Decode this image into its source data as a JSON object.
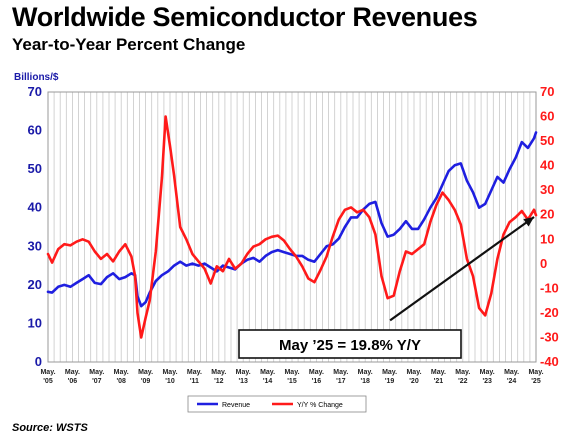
{
  "header": {
    "title": "Worldwide Semiconductor Revenues",
    "subtitle": "Year-to-Year Percent Change"
  },
  "footer": {
    "source": "Source: WSTS"
  },
  "colors": {
    "revenue": "#1f1fe0",
    "yoy": "#ff1a1a",
    "grid": "#c8c8c8",
    "text": "#1a1aa8"
  },
  "chart_data": {
    "type": "line",
    "left_axis_label": "Billions/$",
    "left_axis": {
      "ylim": [
        0,
        70
      ],
      "ticks": [
        0,
        10,
        20,
        30,
        40,
        50,
        60,
        70
      ]
    },
    "right_axis": {
      "ylim": [
        -40,
        70
      ],
      "ticks": [
        -40,
        -30,
        -20,
        -10,
        0,
        10,
        20,
        30,
        40,
        50,
        60,
        70
      ]
    },
    "x_ticks": [
      {
        "top": "May.",
        "bottom": "'05",
        "x": 2005.33
      },
      {
        "top": "May.",
        "bottom": "'06",
        "x": 2006.33
      },
      {
        "top": "May.",
        "bottom": "'07",
        "x": 2007.33
      },
      {
        "top": "May.",
        "bottom": "'08",
        "x": 2008.33
      },
      {
        "top": "May.",
        "bottom": "'09",
        "x": 2009.33
      },
      {
        "top": "May.",
        "bottom": "'10",
        "x": 2010.33
      },
      {
        "top": "May.",
        "bottom": "'11",
        "x": 2011.33
      },
      {
        "top": "May.",
        "bottom": "'12",
        "x": 2012.33
      },
      {
        "top": "May.",
        "bottom": "'13",
        "x": 2013.33
      },
      {
        "top": "May.",
        "bottom": "'14",
        "x": 2014.33
      },
      {
        "top": "May.",
        "bottom": "'15",
        "x": 2015.33
      },
      {
        "top": "May.",
        "bottom": "'16",
        "x": 2016.33
      },
      {
        "top": "May.",
        "bottom": "'17",
        "x": 2017.33
      },
      {
        "top": "May.",
        "bottom": "'18",
        "x": 2018.33
      },
      {
        "top": "May.",
        "bottom": "'19",
        "x": 2019.33
      },
      {
        "top": "May.",
        "bottom": "'20",
        "x": 2020.33
      },
      {
        "top": "May.",
        "bottom": "'21",
        "x": 2021.33
      },
      {
        "top": "May.",
        "bottom": "'22",
        "x": 2022.33
      },
      {
        "top": "May.",
        "bottom": "'23",
        "x": 2023.33
      },
      {
        "top": "May.",
        "bottom": "'24",
        "x": 2024.33
      },
      {
        "top": "May.",
        "bottom": "'25",
        "x": 2025.33
      }
    ],
    "x_range": [
      2005.33,
      2025.33
    ],
    "grid": true,
    "legend": {
      "placement": "bottom-center"
    },
    "annotation": {
      "text": "May ’25 = 19.8% Y/Y",
      "arrow_from": [
        2019.35,
        10.8
      ],
      "arrow_to": [
        2025.25,
        37.6
      ]
    },
    "series": [
      {
        "name": "Revenue",
        "axis": "left",
        "points": [
          [
            2005.33,
            18.2
          ],
          [
            2005.5,
            18.0
          ],
          [
            2005.75,
            19.5
          ],
          [
            2006.0,
            20.0
          ],
          [
            2006.25,
            19.5
          ],
          [
            2006.5,
            20.5
          ],
          [
            2006.75,
            21.5
          ],
          [
            2007.0,
            22.5
          ],
          [
            2007.25,
            20.5
          ],
          [
            2007.5,
            20.2
          ],
          [
            2007.75,
            22.0
          ],
          [
            2008.0,
            23.0
          ],
          [
            2008.25,
            21.5
          ],
          [
            2008.5,
            22.0
          ],
          [
            2008.75,
            23.0
          ],
          [
            2008.9,
            22.5
          ],
          [
            2009.0,
            17.0
          ],
          [
            2009.15,
            14.5
          ],
          [
            2009.33,
            15.5
          ],
          [
            2009.5,
            18.0
          ],
          [
            2009.75,
            21.0
          ],
          [
            2010.0,
            22.5
          ],
          [
            2010.25,
            23.5
          ],
          [
            2010.5,
            25.0
          ],
          [
            2010.75,
            26.0
          ],
          [
            2011.0,
            25.0
          ],
          [
            2011.25,
            25.5
          ],
          [
            2011.5,
            25.0
          ],
          [
            2011.75,
            25.5
          ],
          [
            2012.0,
            24.5
          ],
          [
            2012.25,
            23.5
          ],
          [
            2012.5,
            25.0
          ],
          [
            2012.75,
            24.5
          ],
          [
            2013.0,
            24.0
          ],
          [
            2013.25,
            25.5
          ],
          [
            2013.5,
            26.5
          ],
          [
            2013.75,
            27.0
          ],
          [
            2014.0,
            26.0
          ],
          [
            2014.25,
            27.5
          ],
          [
            2014.5,
            28.5
          ],
          [
            2014.75,
            29.0
          ],
          [
            2015.0,
            28.5
          ],
          [
            2015.25,
            28.0
          ],
          [
            2015.5,
            27.5
          ],
          [
            2015.75,
            27.5
          ],
          [
            2016.0,
            26.5
          ],
          [
            2016.25,
            26.0
          ],
          [
            2016.5,
            28.0
          ],
          [
            2016.75,
            30.0
          ],
          [
            2017.0,
            30.5
          ],
          [
            2017.25,
            32.0
          ],
          [
            2017.5,
            35.0
          ],
          [
            2017.75,
            37.5
          ],
          [
            2018.0,
            37.5
          ],
          [
            2018.25,
            39.5
          ],
          [
            2018.5,
            41.0
          ],
          [
            2018.75,
            41.5
          ],
          [
            2019.0,
            36.0
          ],
          [
            2019.25,
            32.5
          ],
          [
            2019.5,
            33.0
          ],
          [
            2019.75,
            34.5
          ],
          [
            2020.0,
            36.5
          ],
          [
            2020.25,
            34.5
          ],
          [
            2020.5,
            34.5
          ],
          [
            2020.75,
            37.0
          ],
          [
            2021.0,
            40.0
          ],
          [
            2021.25,
            42.5
          ],
          [
            2021.5,
            46.0
          ],
          [
            2021.75,
            49.5
          ],
          [
            2022.0,
            51.0
          ],
          [
            2022.25,
            51.5
          ],
          [
            2022.5,
            47.0
          ],
          [
            2022.75,
            44.0
          ],
          [
            2023.0,
            40.0
          ],
          [
            2023.25,
            41.0
          ],
          [
            2023.5,
            44.5
          ],
          [
            2023.75,
            48.0
          ],
          [
            2024.0,
            46.5
          ],
          [
            2024.25,
            50.0
          ],
          [
            2024.5,
            53.0
          ],
          [
            2024.75,
            57.0
          ],
          [
            2025.0,
            55.5
          ],
          [
            2025.25,
            58.0
          ],
          [
            2025.33,
            59.5
          ]
        ]
      },
      {
        "name": "Y/Y % Change",
        "axis": "right",
        "points": [
          [
            2005.33,
            4.0
          ],
          [
            2005.5,
            0.5
          ],
          [
            2005.75,
            6.0
          ],
          [
            2006.0,
            8.0
          ],
          [
            2006.25,
            7.5
          ],
          [
            2006.5,
            9.0
          ],
          [
            2006.75,
            10.0
          ],
          [
            2007.0,
            9.0
          ],
          [
            2007.25,
            5.0
          ],
          [
            2007.5,
            2.0
          ],
          [
            2007.75,
            4.0
          ],
          [
            2008.0,
            1.0
          ],
          [
            2008.25,
            5.0
          ],
          [
            2008.5,
            8.0
          ],
          [
            2008.75,
            3.0
          ],
          [
            2008.9,
            -5.0
          ],
          [
            2009.0,
            -20.0
          ],
          [
            2009.15,
            -30.0
          ],
          [
            2009.33,
            -22.0
          ],
          [
            2009.5,
            -15.0
          ],
          [
            2009.75,
            5.0
          ],
          [
            2010.0,
            35.0
          ],
          [
            2010.15,
            60.0
          ],
          [
            2010.33,
            48.0
          ],
          [
            2010.5,
            36.0
          ],
          [
            2010.75,
            15.0
          ],
          [
            2011.0,
            10.0
          ],
          [
            2011.25,
            4.0
          ],
          [
            2011.5,
            1.0
          ],
          [
            2011.75,
            -2.0
          ],
          [
            2012.0,
            -8.0
          ],
          [
            2012.25,
            -1.0
          ],
          [
            2012.5,
            -3.0
          ],
          [
            2012.75,
            2.0
          ],
          [
            2013.0,
            -2.0
          ],
          [
            2013.25,
            0.0
          ],
          [
            2013.5,
            4.0
          ],
          [
            2013.75,
            7.0
          ],
          [
            2014.0,
            8.0
          ],
          [
            2014.25,
            10.0
          ],
          [
            2014.5,
            11.0
          ],
          [
            2014.75,
            11.5
          ],
          [
            2015.0,
            9.5
          ],
          [
            2015.25,
            6.0
          ],
          [
            2015.5,
            3.0
          ],
          [
            2015.75,
            -1.0
          ],
          [
            2016.0,
            -6.0
          ],
          [
            2016.25,
            -7.5
          ],
          [
            2016.5,
            -2.5
          ],
          [
            2016.75,
            3.0
          ],
          [
            2017.0,
            11.0
          ],
          [
            2017.25,
            18.0
          ],
          [
            2017.5,
            22.0
          ],
          [
            2017.75,
            23.0
          ],
          [
            2018.0,
            21.0
          ],
          [
            2018.25,
            22.0
          ],
          [
            2018.5,
            19.0
          ],
          [
            2018.75,
            12.0
          ],
          [
            2019.0,
            -5.0
          ],
          [
            2019.25,
            -14.0
          ],
          [
            2019.5,
            -13.0
          ],
          [
            2019.75,
            -3.0
          ],
          [
            2020.0,
            5.0
          ],
          [
            2020.25,
            4.0
          ],
          [
            2020.5,
            6.0
          ],
          [
            2020.75,
            8.0
          ],
          [
            2021.0,
            17.0
          ],
          [
            2021.25,
            24.0
          ],
          [
            2021.5,
            29.0
          ],
          [
            2021.75,
            26.0
          ],
          [
            2022.0,
            22.0
          ],
          [
            2022.25,
            16.0
          ],
          [
            2022.5,
            2.0
          ],
          [
            2022.75,
            -5.0
          ],
          [
            2023.0,
            -18.0
          ],
          [
            2023.25,
            -21.0
          ],
          [
            2023.5,
            -12.0
          ],
          [
            2023.75,
            2.0
          ],
          [
            2024.0,
            12.0
          ],
          [
            2024.25,
            17.0
          ],
          [
            2024.5,
            19.0
          ],
          [
            2024.75,
            21.5
          ],
          [
            2025.0,
            18.0
          ],
          [
            2025.25,
            22.0
          ],
          [
            2025.33,
            19.8
          ]
        ]
      }
    ]
  }
}
